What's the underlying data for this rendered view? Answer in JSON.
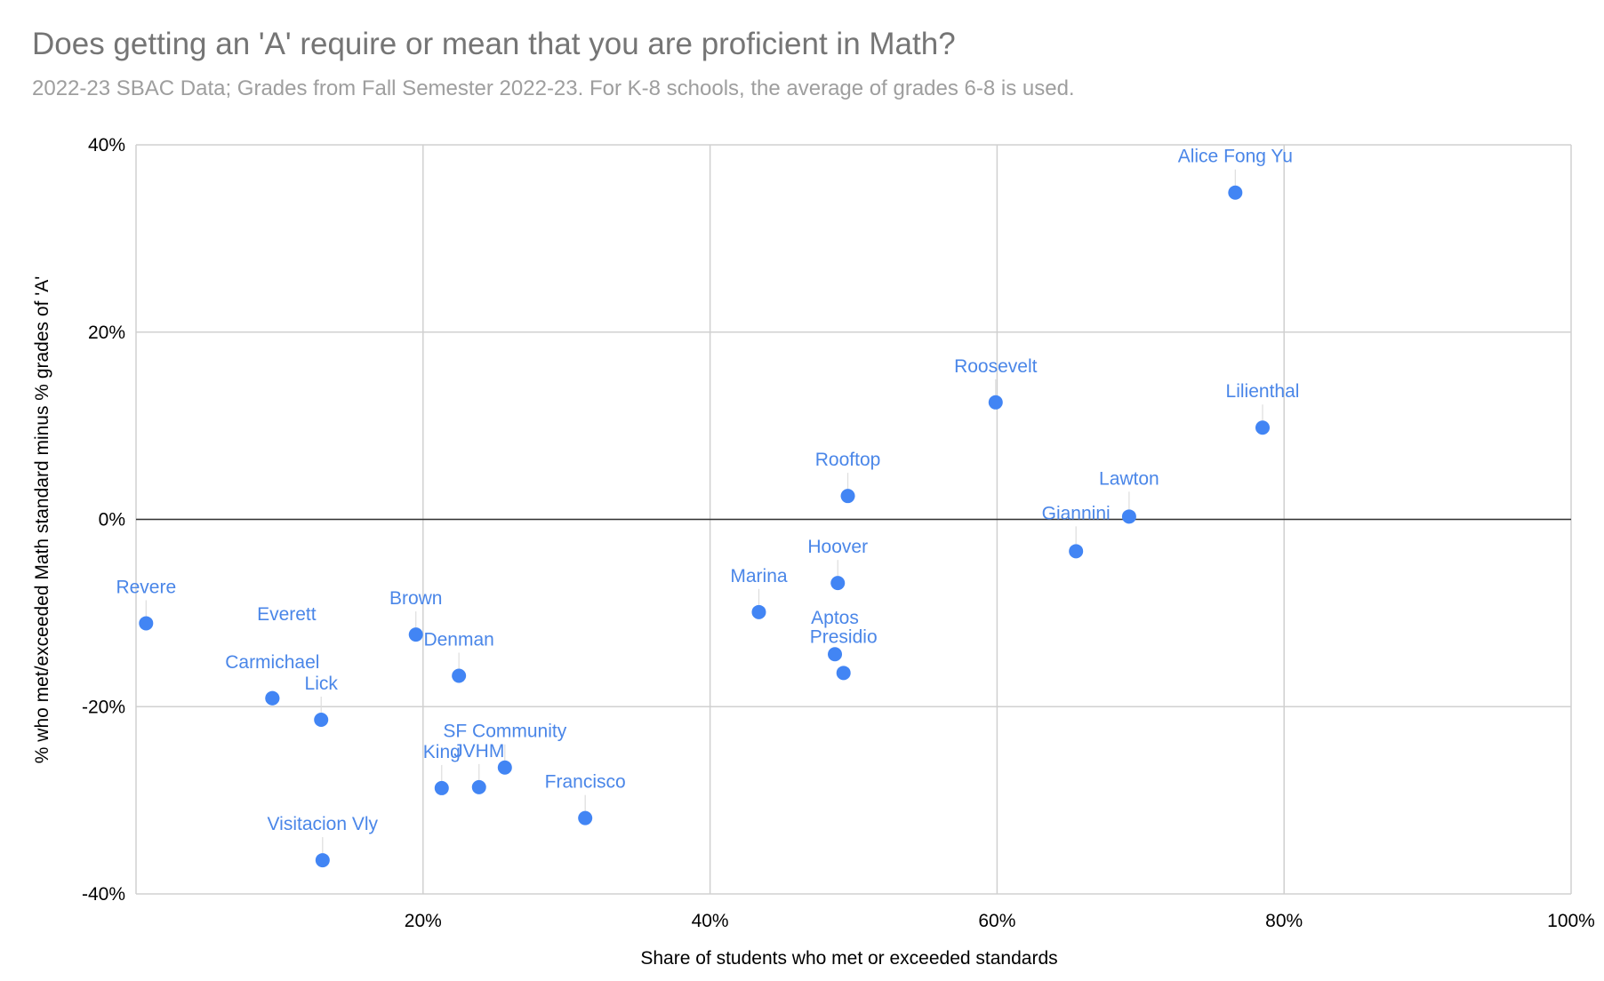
{
  "chart_data": {
    "type": "scatter",
    "title": "Does getting an 'A' require or mean that you are proficient in Math?",
    "subtitle": "2022-23 SBAC Data; Grades from Fall Semester 2022-23. For K-8 schools, the average of grades 6-8 is used.",
    "xlabel": "Share of students who met or exceeded standards",
    "ylabel": "% who met/exceeded Math standard minus % grades of 'A'",
    "xlim": [
      0,
      100
    ],
    "ylim": [
      -40,
      40
    ],
    "x_ticks": [
      "20%",
      "40%",
      "60%",
      "80%",
      "100%"
    ],
    "y_ticks": [
      "40%",
      "20%",
      "0%",
      "-20%",
      "-40%"
    ],
    "grid": true,
    "unit": "%",
    "points": [
      {
        "label": "Alice Fong Yu",
        "x": 76.6,
        "y": 34.9
      },
      {
        "label": "Roosevelt",
        "x": 59.9,
        "y": 12.5
      },
      {
        "label": "Lilienthal",
        "x": 78.5,
        "y": 9.8
      },
      {
        "label": "Rooftop",
        "x": 49.6,
        "y": 2.5
      },
      {
        "label": "Lawton",
        "x": 69.2,
        "y": 0.3
      },
      {
        "label": "Giannini",
        "x": 65.5,
        "y": -3.4
      },
      {
        "label": "Hoover",
        "x": 48.9,
        "y": -6.8
      },
      {
        "label": "Marina",
        "x": 43.4,
        "y": -9.9
      },
      {
        "label": "Aptos",
        "x": 48.7,
        "y": -14.4
      },
      {
        "label": "Presidio",
        "x": 49.3,
        "y": -16.4
      },
      {
        "label": "Revere",
        "x": 0.7,
        "y": -11.1
      },
      {
        "label": "Brown",
        "x": 19.5,
        "y": -12.3
      },
      {
        "label": "Denman",
        "x": 22.5,
        "y": -16.7
      },
      {
        "label": "Everett",
        "x": 9.5,
        "y": -19.1
      },
      {
        "label": "Carmichael",
        "x": 9.5,
        "y": -19.1
      },
      {
        "label": "Lick",
        "x": 12.9,
        "y": -21.4
      },
      {
        "label": "SF Community",
        "x": 25.7,
        "y": -26.5
      },
      {
        "label": "King",
        "x": 21.3,
        "y": -28.7
      },
      {
        "label": "JVHM",
        "x": 23.9,
        "y": -28.6
      },
      {
        "label": "Francisco",
        "x": 31.3,
        "y": -31.9
      },
      {
        "label": "Visitacion Vly",
        "x": 13.0,
        "y": -36.4
      }
    ]
  }
}
